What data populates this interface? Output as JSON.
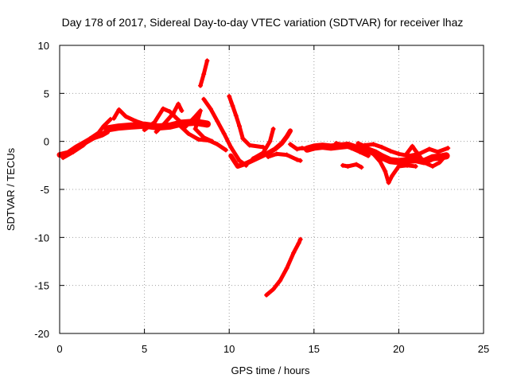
{
  "chart_data": {
    "type": "scatter",
    "title": "Day 178 of 2017, Sidereal Day-to-day VTEC variation (SDTVAR) for receiver lhaz",
    "xlabel": "GPS time / hours",
    "ylabel": "SDTVAR / TECUs",
    "xlim": [
      0,
      25
    ],
    "ylim": [
      -20,
      10
    ],
    "xticks": [
      "0",
      "5",
      "10",
      "15",
      "20",
      "25"
    ],
    "yticks": [
      "10",
      "5",
      "0",
      "-5",
      "-10",
      "-15",
      "-20"
    ],
    "grid": true,
    "marker": "+",
    "color": "#ff0000",
    "series": [
      {
        "name": "trace-1",
        "width": 7,
        "points": [
          [
            0,
            -1.4
          ],
          [
            0.5,
            -1.2
          ],
          [
            1,
            -0.6
          ],
          [
            1.5,
            -0.1
          ],
          [
            2,
            0.4
          ],
          [
            2.5,
            0.7
          ],
          [
            2.8,
            1.0
          ]
        ]
      },
      {
        "name": "trace-2",
        "width": 5,
        "points": [
          [
            0.2,
            -1.7
          ],
          [
            0.8,
            -1.1
          ],
          [
            1.4,
            -0.4
          ],
          [
            1.8,
            0.3
          ],
          [
            2.3,
            0.9
          ],
          [
            2.6,
            1.6
          ],
          [
            3.0,
            2.3
          ]
        ]
      },
      {
        "name": "trace-3",
        "width": 9,
        "points": [
          [
            2.8,
            1.3
          ],
          [
            3.5,
            1.5
          ],
          [
            4.2,
            1.6
          ],
          [
            5,
            1.7
          ],
          [
            5.8,
            1.5
          ],
          [
            6.5,
            1.6
          ],
          [
            7.2,
            1.9
          ],
          [
            8,
            2.0
          ],
          [
            8.7,
            1.8
          ]
        ]
      },
      {
        "name": "trace-4",
        "width": 5,
        "points": [
          [
            3.2,
            2.4
          ],
          [
            3.5,
            3.3
          ],
          [
            3.9,
            2.6
          ],
          [
            4.5,
            2.1
          ],
          [
            5.0,
            1.8
          ]
        ]
      },
      {
        "name": "trace-5",
        "width": 5,
        "points": [
          [
            5.0,
            1.2
          ],
          [
            5.6,
            2.0
          ],
          [
            6.1,
            3.4
          ],
          [
            6.5,
            3.1
          ],
          [
            6.9,
            2.4
          ],
          [
            7.4,
            1.6
          ]
        ]
      },
      {
        "name": "trace-6",
        "width": 5,
        "points": [
          [
            5.7,
            1.0
          ],
          [
            6.2,
            1.9
          ],
          [
            6.7,
            2.9
          ],
          [
            7.0,
            3.9
          ],
          [
            7.2,
            3.2
          ]
        ]
      },
      {
        "name": "trace-7",
        "width": 5,
        "points": [
          [
            7.4,
            1.5
          ],
          [
            8.0,
            2.6
          ],
          [
            8.3,
            3.2
          ],
          [
            8.0,
            1.3
          ],
          [
            8.5,
            0.4
          ],
          [
            9.0,
            0.0
          ]
        ]
      },
      {
        "name": "trace-8",
        "width": 5,
        "points": [
          [
            7.0,
            1.8
          ],
          [
            7.6,
            0.8
          ],
          [
            8.2,
            0.2
          ],
          [
            8.8,
            0.1
          ],
          [
            9.3,
            -0.3
          ],
          [
            9.8,
            -0.9
          ]
        ]
      },
      {
        "name": "trace-9",
        "width": 5,
        "points": [
          [
            8.5,
            4.4
          ],
          [
            8.9,
            3.4
          ],
          [
            9.3,
            2.1
          ],
          [
            9.7,
            0.8
          ],
          [
            10.1,
            -0.6
          ],
          [
            10.6,
            -2.0
          ],
          [
            11.0,
            -2.5
          ]
        ]
      },
      {
        "name": "trace-10",
        "width": 5,
        "points": [
          [
            8.3,
            5.8
          ],
          [
            8.5,
            7.0
          ],
          [
            8.7,
            8.4
          ]
        ]
      },
      {
        "name": "trace-11",
        "width": 5,
        "points": [
          [
            10.0,
            4.7
          ],
          [
            10.2,
            3.7
          ],
          [
            10.4,
            2.7
          ],
          [
            10.6,
            1.6
          ],
          [
            10.8,
            0.3
          ],
          [
            11.2,
            -0.4
          ],
          [
            12.0,
            -0.6
          ]
        ]
      },
      {
        "name": "trace-12",
        "width": 6,
        "points": [
          [
            10.1,
            -1.5
          ],
          [
            10.5,
            -2.6
          ],
          [
            11.0,
            -2.3
          ],
          [
            11.6,
            -1.8
          ],
          [
            12.2,
            -1.3
          ],
          [
            12.7,
            -0.8
          ],
          [
            13.1,
            -0.2
          ],
          [
            13.4,
            0.5
          ],
          [
            13.6,
            1.1
          ]
        ]
      },
      {
        "name": "trace-13",
        "width": 5,
        "points": [
          [
            11.4,
            -1.8
          ],
          [
            12.0,
            -1.2
          ],
          [
            12.4,
            0.0
          ],
          [
            12.6,
            1.3
          ]
        ]
      },
      {
        "name": "trace-14",
        "width": 5,
        "points": [
          [
            12.3,
            -1.6
          ],
          [
            12.8,
            -1.3
          ],
          [
            13.4,
            -1.4
          ],
          [
            14.0,
            -1.9
          ],
          [
            14.2,
            -2.0
          ]
        ]
      },
      {
        "name": "trace-15",
        "width": 5,
        "points": [
          [
            13.6,
            -0.3
          ],
          [
            14.0,
            -0.8
          ],
          [
            14.3,
            -0.7
          ],
          [
            14.6,
            -0.8
          ]
        ]
      },
      {
        "name": "trace-16",
        "width": 5,
        "points": [
          [
            12.2,
            -16.0
          ],
          [
            12.6,
            -15.4
          ],
          [
            13.0,
            -14.5
          ],
          [
            13.4,
            -13.2
          ],
          [
            13.8,
            -11.6
          ],
          [
            14.1,
            -10.6
          ],
          [
            14.2,
            -10.2
          ]
        ]
      },
      {
        "name": "trace-17",
        "width": 9,
        "points": [
          [
            14.6,
            -0.8
          ],
          [
            15.0,
            -0.6
          ],
          [
            15.5,
            -0.5
          ],
          [
            16.0,
            -0.6
          ],
          [
            16.5,
            -0.5
          ],
          [
            17.0,
            -0.4
          ],
          [
            17.5,
            -0.7
          ],
          [
            18.0,
            -0.8
          ],
          [
            18.6,
            -1.2
          ],
          [
            19.0,
            -1.6
          ],
          [
            19.5,
            -2.0
          ],
          [
            20.0,
            -2.1
          ],
          [
            20.5,
            -2.0
          ],
          [
            21.0,
            -1.9
          ],
          [
            21.5,
            -2.1
          ],
          [
            22.0,
            -1.7
          ],
          [
            22.5,
            -1.6
          ],
          [
            22.8,
            -1.5
          ]
        ]
      },
      {
        "name": "trace-18",
        "width": 5,
        "points": [
          [
            16.7,
            -2.5
          ],
          [
            17.0,
            -2.6
          ],
          [
            17.5,
            -2.4
          ],
          [
            17.8,
            -2.7
          ]
        ]
      },
      {
        "name": "trace-19",
        "width": 5,
        "points": [
          [
            17.6,
            -0.2
          ],
          [
            18.0,
            -0.5
          ],
          [
            18.5,
            -1.3
          ],
          [
            18.9,
            -2.1
          ],
          [
            19.2,
            -3.1
          ],
          [
            19.4,
            -4.3
          ],
          [
            19.6,
            -3.6
          ],
          [
            20.0,
            -2.6
          ],
          [
            20.5,
            -2.5
          ],
          [
            21.0,
            -2.6
          ]
        ]
      },
      {
        "name": "trace-20",
        "width": 5,
        "points": [
          [
            18.0,
            -0.4
          ],
          [
            18.5,
            -0.3
          ],
          [
            19.0,
            -0.6
          ],
          [
            19.5,
            -1.0
          ],
          [
            20.0,
            -1.3
          ],
          [
            20.6,
            -1.5
          ],
          [
            21.2,
            -1.3
          ],
          [
            21.8,
            -0.8
          ],
          [
            22.3,
            -1.1
          ],
          [
            22.9,
            -0.7
          ]
        ]
      },
      {
        "name": "trace-21",
        "width": 5,
        "points": [
          [
            20.5,
            -1.2
          ],
          [
            20.8,
            -0.5
          ],
          [
            21.0,
            -1.0
          ],
          [
            21.5,
            -2.2
          ],
          [
            22.0,
            -2.6
          ],
          [
            22.4,
            -2.2
          ],
          [
            22.8,
            -1.4
          ]
        ]
      },
      {
        "name": "trace-22",
        "width": 5,
        "points": [
          [
            16.3,
            -0.2
          ],
          [
            16.8,
            -0.4
          ],
          [
            17.2,
            -0.7
          ],
          [
            17.7,
            -1.1
          ],
          [
            18.2,
            -1.5
          ]
        ]
      }
    ]
  }
}
